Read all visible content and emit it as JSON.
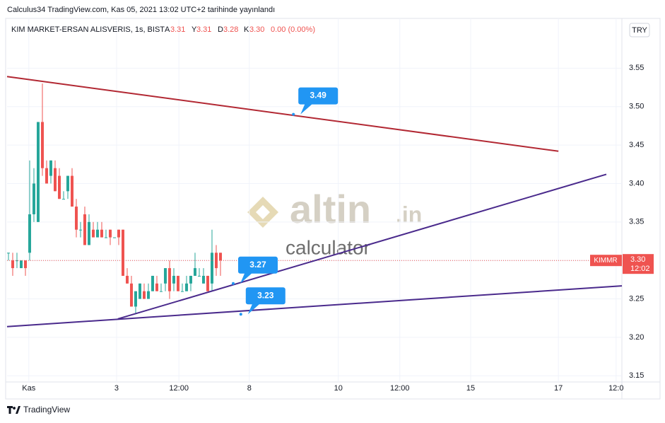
{
  "header": {
    "published": "Calculus34 TradingView.com, Kas 05, 2021 13:02 UTC+2 tarihinde yayınlandı"
  },
  "chart_data": {
    "type": "candlestick",
    "symbol": "KIM MARKET-ERSAN ALISVERIS, 1s, BIST",
    "legend": {
      "open_label": "A",
      "open": 3.31,
      "high_label": "Y",
      "high": 3.31,
      "low_label": "D",
      "low": 3.28,
      "close_label": "K",
      "close": {
        "value": 3.3,
        "label": "3.30"
      },
      "change": "0.00 (0.00%)"
    },
    "currency": "TRY",
    "up_color": "#26a69a",
    "down_color": "#ef5350",
    "open": [
      3.31,
      3.3,
      3.3,
      3.29,
      3.3,
      3.31,
      3.36,
      3.35,
      3.48,
      3.42,
      3.41,
      3.42,
      3.41,
      3.38,
      3.39,
      3.41,
      3.37,
      3.34,
      3.36,
      3.32,
      3.34,
      3.33,
      3.34,
      3.33,
      3.34,
      3.33,
      3.34,
      3.34,
      3.28,
      3.27,
      3.24,
      3.25,
      3.26,
      3.25,
      3.26,
      3.27,
      3.26,
      3.27,
      3.29,
      3.27,
      3.28,
      3.26,
      3.26,
      3.27,
      3.28,
      3.28,
      3.27,
      3.28,
      3.27,
      3.31,
      3.31
    ],
    "high": [
      3.31,
      3.31,
      3.31,
      3.3,
      3.3,
      3.43,
      3.42,
      3.48,
      3.53,
      3.43,
      3.43,
      3.43,
      3.42,
      3.39,
      3.41,
      3.42,
      3.38,
      3.35,
      3.37,
      3.36,
      3.35,
      3.35,
      3.35,
      3.34,
      3.34,
      3.33,
      3.34,
      3.34,
      3.29,
      3.28,
      3.26,
      3.27,
      3.27,
      3.27,
      3.28,
      3.28,
      3.27,
      3.29,
      3.3,
      3.29,
      3.28,
      3.27,
      3.28,
      3.28,
      3.31,
      3.29,
      3.29,
      3.28,
      3.34,
      3.32,
      3.31
    ],
    "low": [
      3.3,
      3.28,
      3.29,
      3.29,
      3.28,
      3.3,
      3.35,
      3.35,
      3.41,
      3.4,
      3.4,
      3.39,
      3.38,
      3.38,
      3.38,
      3.37,
      3.33,
      3.33,
      3.32,
      3.32,
      3.33,
      3.33,
      3.33,
      3.33,
      3.32,
      3.33,
      3.32,
      3.28,
      3.27,
      3.24,
      3.23,
      3.25,
      3.25,
      3.25,
      3.26,
      3.26,
      3.26,
      3.26,
      3.25,
      3.26,
      3.26,
      3.26,
      3.26,
      3.26,
      3.28,
      3.28,
      3.27,
      3.26,
      3.26,
      3.28,
      3.28
    ],
    "close": [
      3.31,
      3.29,
      3.3,
      3.3,
      3.29,
      3.36,
      3.4,
      3.48,
      3.42,
      3.4,
      3.43,
      3.39,
      3.38,
      3.38,
      3.41,
      3.37,
      3.34,
      3.34,
      3.32,
      3.35,
      3.33,
      3.34,
      3.33,
      3.33,
      3.33,
      3.33,
      3.33,
      3.28,
      3.27,
      3.24,
      3.26,
      3.27,
      3.25,
      3.26,
      3.28,
      3.26,
      3.26,
      3.29,
      3.26,
      3.28,
      3.26,
      3.26,
      3.27,
      3.28,
      3.29,
      3.28,
      3.28,
      3.26,
      3.31,
      3.29,
      3.3
    ],
    "xlim": [
      -0.33,
      144.67
    ],
    "xticks": [
      {
        "value": 4.8,
        "label": "Kas"
      },
      {
        "value": 25.5,
        "label": "3"
      },
      {
        "value": 40.2,
        "label": "12:00"
      },
      {
        "value": 56.8,
        "label": "8"
      },
      {
        "value": 77.8,
        "label": "10"
      },
      {
        "value": 92.3,
        "label": "12:00"
      },
      {
        "value": 109,
        "label": "15"
      },
      {
        "value": 129.7,
        "label": "17"
      },
      {
        "value": 143.3,
        "label": "12:0"
      }
    ],
    "ylim": [
      3.142,
      3.611
    ],
    "yticks": [
      3.15,
      {
        "value": 3.2,
        "label": "3.20"
      },
      3.25,
      {
        "value": 3.3,
        "label": "3.30"
      },
      3.35,
      {
        "value": 3.4,
        "label": "3.40"
      },
      3.45,
      {
        "value": 3.5,
        "label": "3.50"
      },
      3.55
    ],
    "trendlines": [
      {
        "color": "#b22833",
        "x": [
          -0.33,
          129.7
        ],
        "values": [
          3.539,
          3.442
        ]
      },
      {
        "color": "#4a2a8c",
        "x": [
          25.8,
          141
        ],
        "values": [
          3.224,
          3.412
        ]
      },
      {
        "color": "#4a2a8c",
        "x": [
          -0.33,
          144.67
        ],
        "values": [
          3.214,
          3.267
        ]
      }
    ],
    "annotations": [
      {
        "value": 3.49,
        "x": 67.2
      },
      {
        "value": 3.27,
        "x": 53
      },
      {
        "value": 3.23,
        "x": 54.8
      }
    ],
    "price_tag": {
      "symbol": "KIMMR",
      "price": {
        "value": 3.3,
        "label": "3.30"
      },
      "time": "12:02"
    },
    "watermark": {
      "brand": "altin",
      "suffix": ".in",
      "sub": "calculator"
    }
  },
  "footer": {
    "brand": "TradingView"
  }
}
